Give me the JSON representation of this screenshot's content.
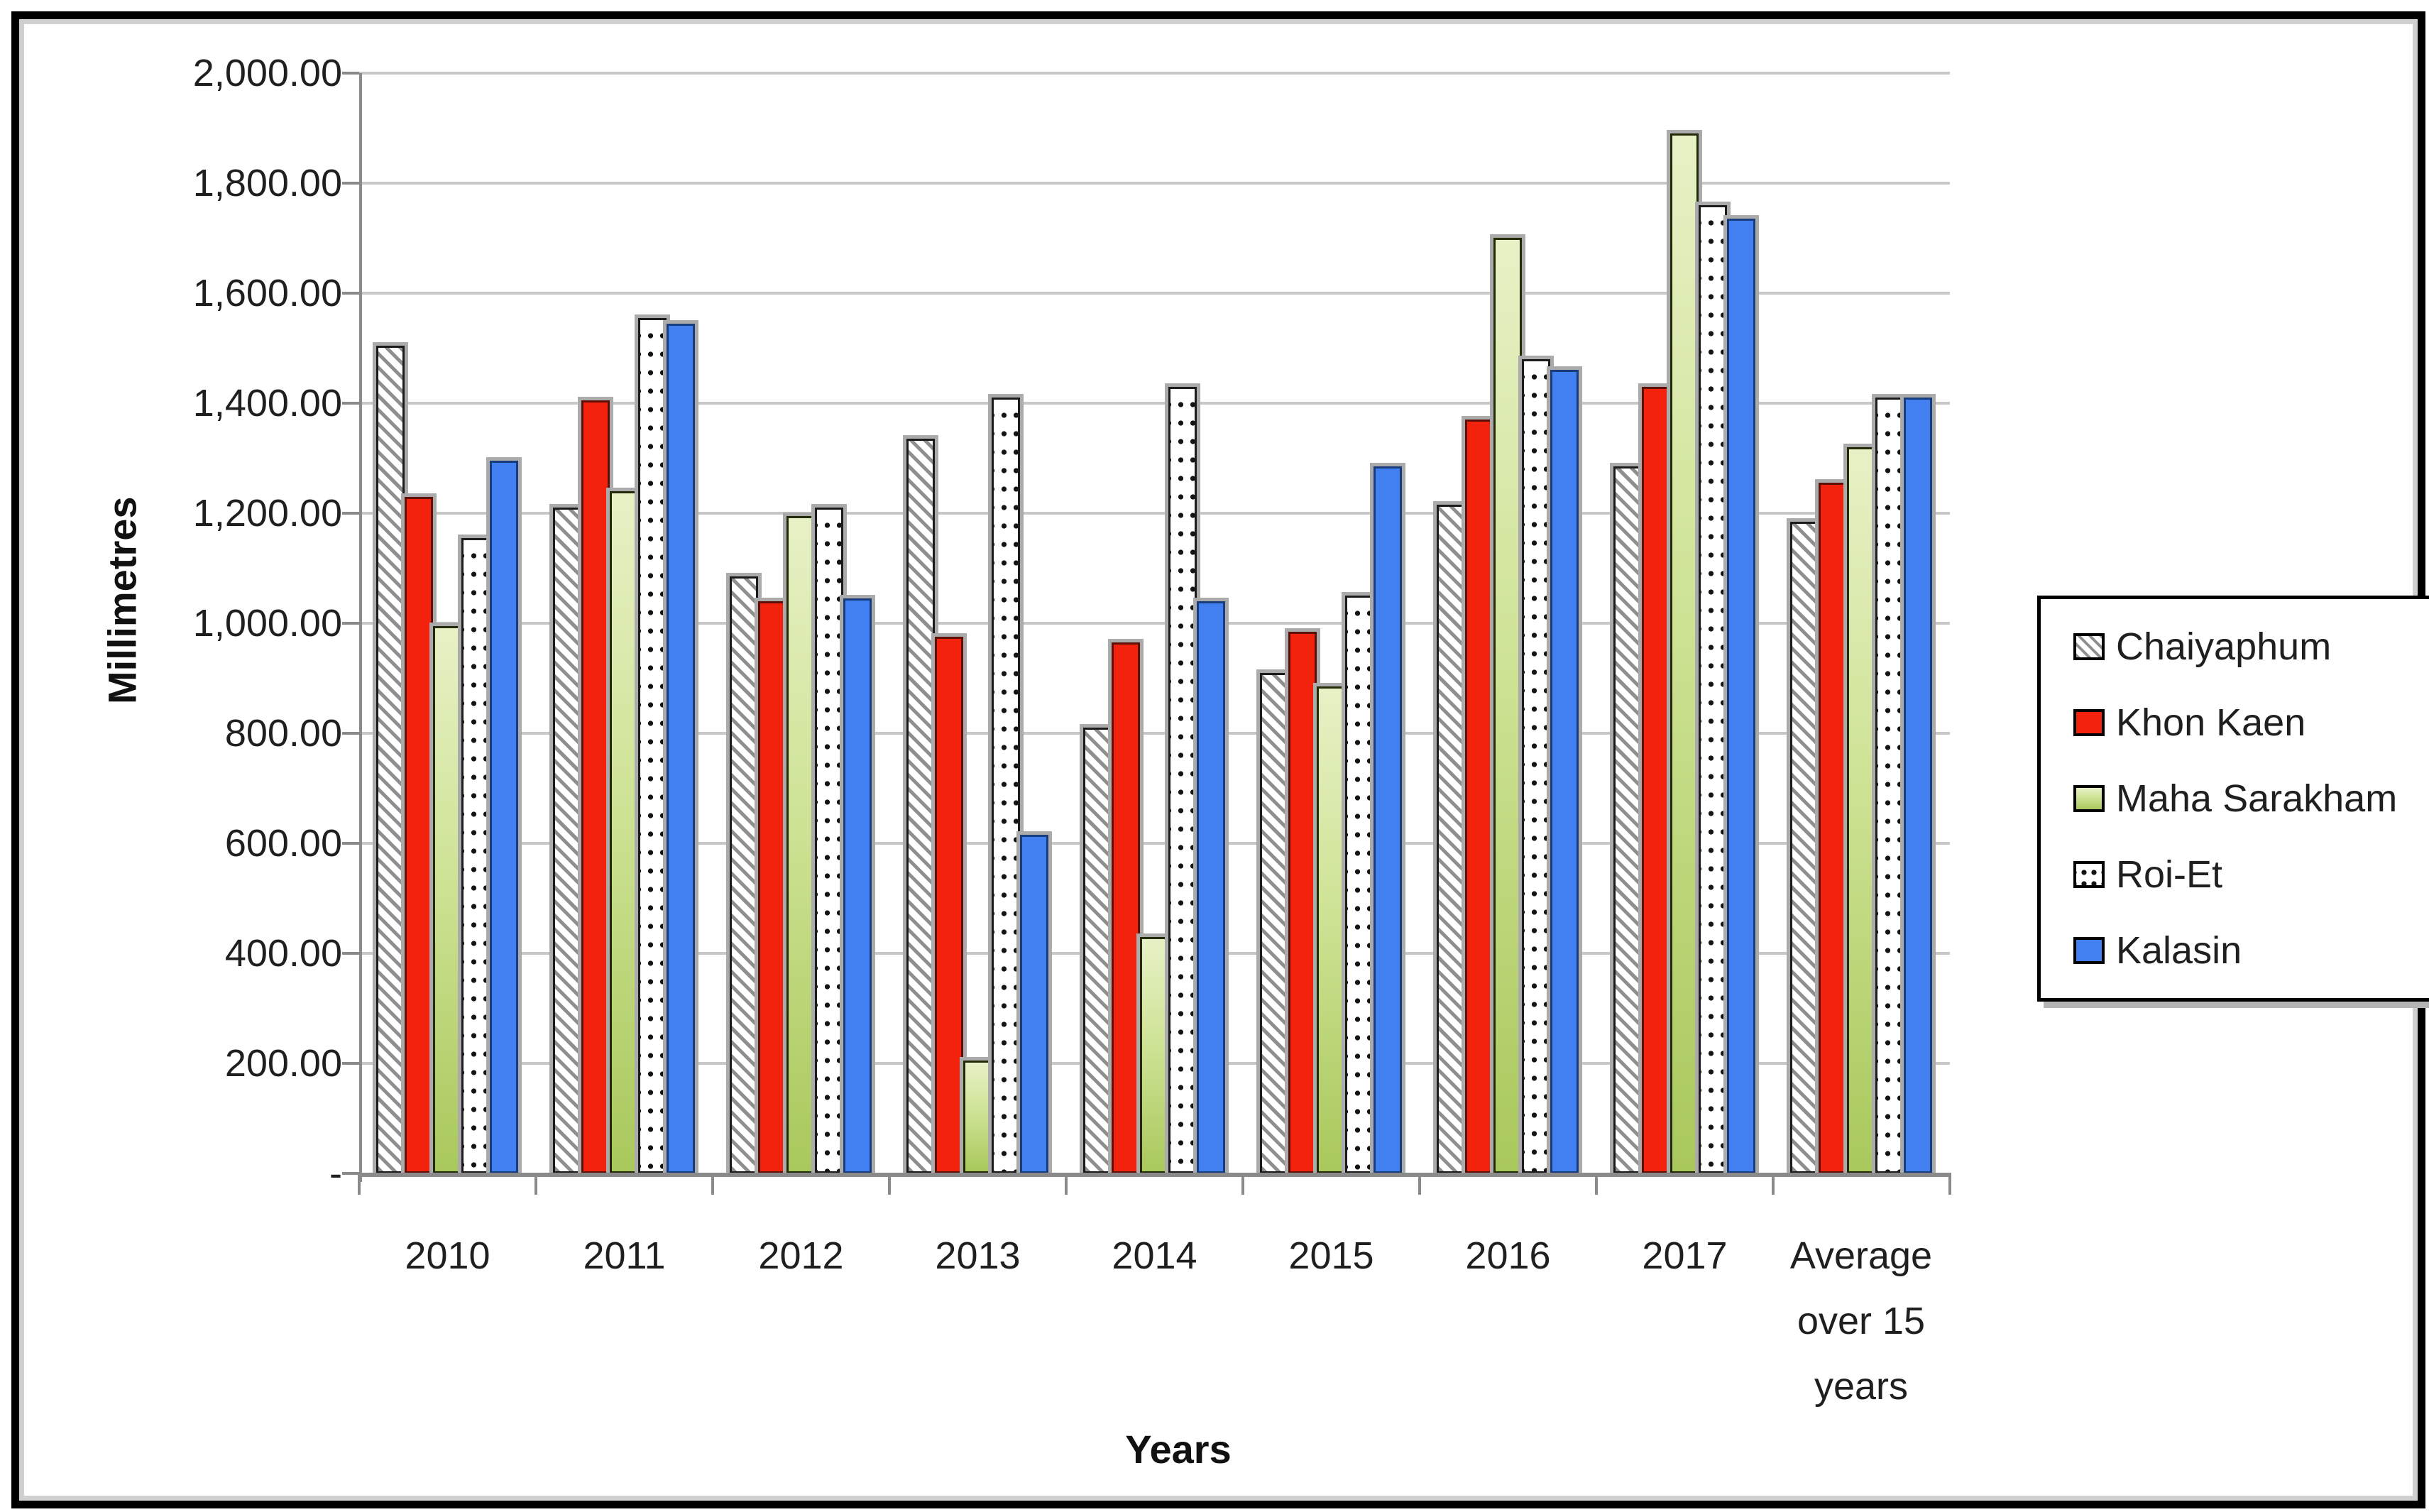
{
  "chart_data": {
    "type": "bar",
    "title": "",
    "xlabel": "Years",
    "ylabel": "Millimetres",
    "unit": "Millimetres",
    "ylim": [
      0,
      2000
    ],
    "ytick_step": 200,
    "ytick_labels": [
      "2,000.00",
      "1,800.00",
      "1,600.00",
      "1,400.00",
      "1,200.00",
      "1,000.00",
      "800.00",
      "600.00",
      "400.00",
      "200.00",
      "-"
    ],
    "grid": true,
    "legend_position": "right",
    "categories": [
      "2010",
      "2011",
      "2012",
      "2013",
      "2014",
      "2015",
      "2016",
      "2017",
      "Average over 15 years"
    ],
    "series": [
      {
        "name": "Chaiyaphum",
        "pattern": "diagonal-hatch",
        "fill": "#ffffff",
        "accent": "#8f8f8f",
        "values": [
          1505,
          1210,
          1085,
          1335,
          810,
          910,
          1215,
          1285,
          1185
        ]
      },
      {
        "name": "Khon Kaen",
        "pattern": "solid",
        "fill": "#f3220c",
        "accent": "#5e0f06",
        "values": [
          1230,
          1405,
          1040,
          975,
          965,
          985,
          1370,
          1430,
          1255
        ]
      },
      {
        "name": "Maha Sarakham",
        "pattern": "gradient",
        "fill": "#bfd87c",
        "accent": "#222a07",
        "values": [
          995,
          1240,
          1195,
          205,
          430,
          885,
          1700,
          1890,
          1320
        ]
      },
      {
        "name": "Roi-Et",
        "pattern": "dotted",
        "fill": "#ffffff",
        "accent": "#141414",
        "values": [
          1155,
          1555,
          1210,
          1410,
          1430,
          1050,
          1480,
          1760,
          1410
        ]
      },
      {
        "name": "Kalasin",
        "pattern": "solid",
        "fill": "#4280f2",
        "accent": "#173d7d",
        "values": [
          1295,
          1545,
          1045,
          615,
          1040,
          1285,
          1460,
          1735,
          1410
        ]
      }
    ]
  }
}
